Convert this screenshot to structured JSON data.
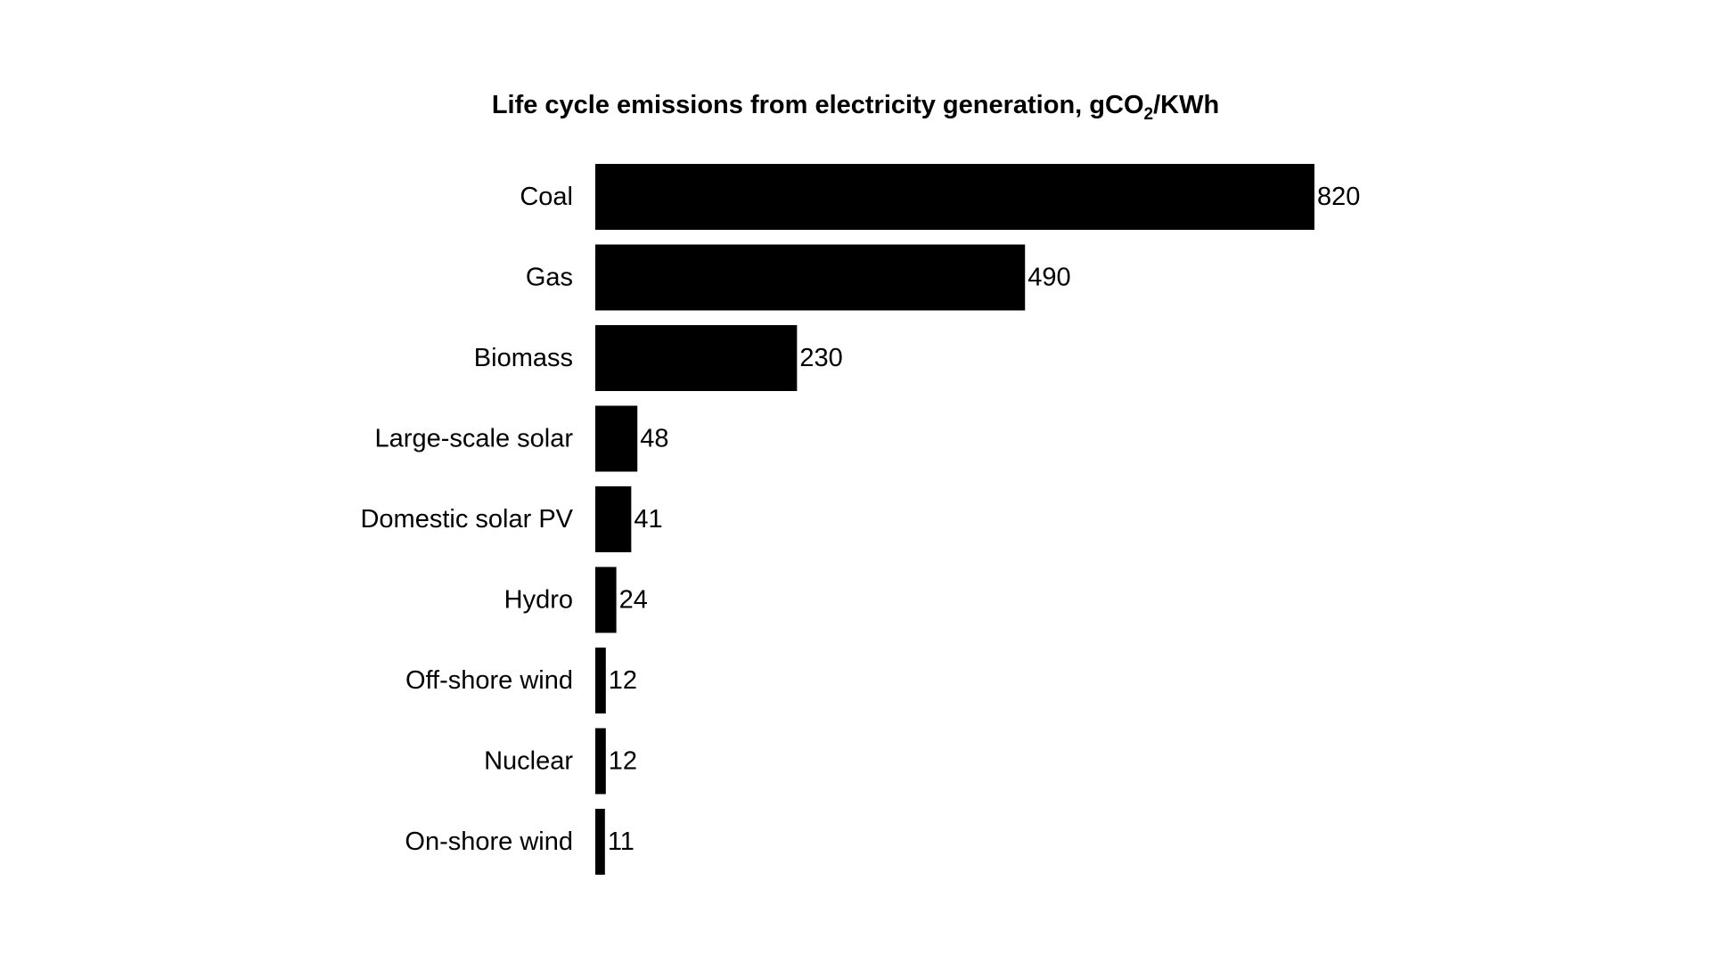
{
  "chart_data": {
    "type": "bar",
    "orientation": "horizontal",
    "title_main": "Life cycle emissions from electricity generation, gCO",
    "title_sub": "2",
    "title_rest": "/KWh",
    "categories": [
      "Coal",
      "Gas",
      "Biomass",
      "Large-scale solar",
      "Domestic solar PV",
      "Hydro",
      "Off-shore wind",
      "Nuclear",
      "On-shore wind"
    ],
    "values": [
      820,
      490,
      230,
      48,
      41,
      24,
      12,
      12,
      11
    ],
    "value_labels": [
      "820",
      "490",
      "230",
      "48",
      "41",
      "24",
      "12",
      "12",
      "11"
    ],
    "xlim": [
      0,
      820
    ],
    "grid": false,
    "legend": "none",
    "bar_color": "#000000",
    "xlabel": "",
    "ylabel": ""
  }
}
